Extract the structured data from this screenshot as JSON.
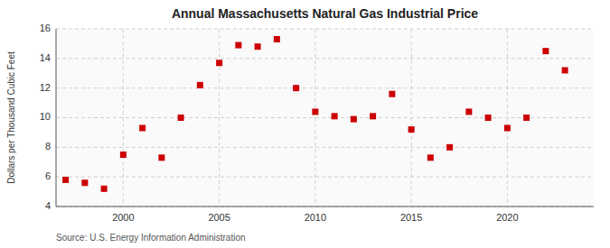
{
  "chart_data": {
    "type": "scatter",
    "title": "Annual Massachusetts Natural Gas Industrial Price",
    "ylabel": "Dollars per Thousand Cubic Feet",
    "source": "Source: U.S. Energy Information Administration",
    "x": [
      1997,
      1998,
      1999,
      2000,
      2001,
      2002,
      2003,
      2004,
      2005,
      2006,
      2007,
      2008,
      2009,
      2010,
      2011,
      2012,
      2013,
      2014,
      2015,
      2016,
      2017,
      2018,
      2019,
      2020,
      2021,
      2022,
      2023
    ],
    "values": [
      5.8,
      5.6,
      5.2,
      7.5,
      9.3,
      7.3,
      10.0,
      12.2,
      13.7,
      14.9,
      14.8,
      15.3,
      12.0,
      10.4,
      10.1,
      9.9,
      10.1,
      11.6,
      9.2,
      7.3,
      8.0,
      10.4,
      10.0,
      9.3,
      10.0,
      14.5,
      13.2
    ],
    "color": "#cc0000",
    "marker": "square",
    "xlim": [
      1996.5,
      2024.5
    ],
    "xticks": [
      2000,
      2005,
      2010,
      2015,
      2020
    ],
    "ylim": [
      4,
      16
    ],
    "yticks": [
      4,
      6,
      8,
      10,
      12,
      14,
      16
    ],
    "grid": true
  }
}
